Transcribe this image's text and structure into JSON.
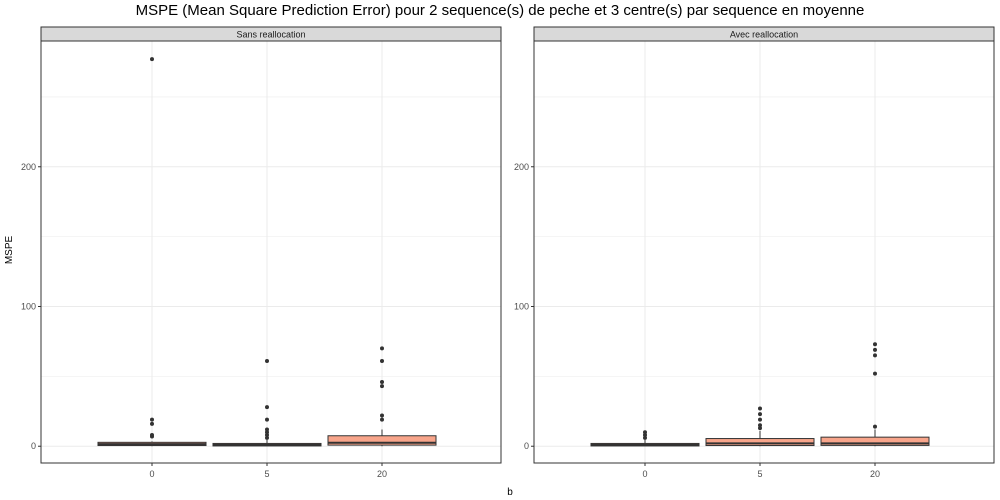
{
  "chart_data": {
    "type": "box",
    "title": "MSPE (Mean Square Prediction Error) pour 2 sequence(s) de peche et 3 centre(s) par sequence en moyenne",
    "xlabel": "b",
    "ylabel": "MSPE",
    "categories": [
      "0",
      "5",
      "20"
    ],
    "ylim": [
      -12,
      290
    ],
    "yticks": [
      0,
      100,
      200
    ],
    "grid": true,
    "colors": {
      "strip_bg": "#d9d9d9",
      "box_fill": "#f8a58b",
      "box_stroke": "#333333",
      "outlier": "#333333",
      "grid": "#ebebeb",
      "panel_border": "#333333"
    },
    "panels": [
      {
        "label": "Sans reallocation",
        "boxes": [
          {
            "category": "0",
            "q1": 0.5,
            "median": 1.5,
            "q3": 2.8,
            "whisker_low": 0,
            "whisker_high": 3.5,
            "outliers": [
              7,
              8,
              16,
              19,
              277
            ]
          },
          {
            "category": "5",
            "q1": 0.3,
            "median": 1.0,
            "q3": 2.0,
            "whisker_low": 0,
            "whisker_high": 4.5,
            "outliers": [
              6,
              8,
              10,
              12,
              19,
              28,
              61
            ]
          },
          {
            "category": "20",
            "q1": 0.8,
            "median": 2.5,
            "q3": 7.5,
            "whisker_low": 0,
            "whisker_high": 12,
            "outliers": [
              19,
              22,
              43,
              46,
              61,
              70
            ]
          }
        ]
      },
      {
        "label": "Avec reallocation",
        "boxes": [
          {
            "category": "0",
            "q1": 0.3,
            "median": 1.0,
            "q3": 2.0,
            "whisker_low": 0,
            "whisker_high": 4.5,
            "outliers": [
              6,
              8,
              10
            ]
          },
          {
            "category": "5",
            "q1": 0.5,
            "median": 2.0,
            "q3": 5.5,
            "whisker_low": 0,
            "whisker_high": 11,
            "outliers": [
              13,
              15,
              19,
              23,
              27
            ]
          },
          {
            "category": "20",
            "q1": 0.6,
            "median": 2.0,
            "q3": 6.5,
            "whisker_low": 0,
            "whisker_high": 12,
            "outliers": [
              14,
              52,
              65,
              69,
              73
            ]
          }
        ]
      }
    ]
  }
}
